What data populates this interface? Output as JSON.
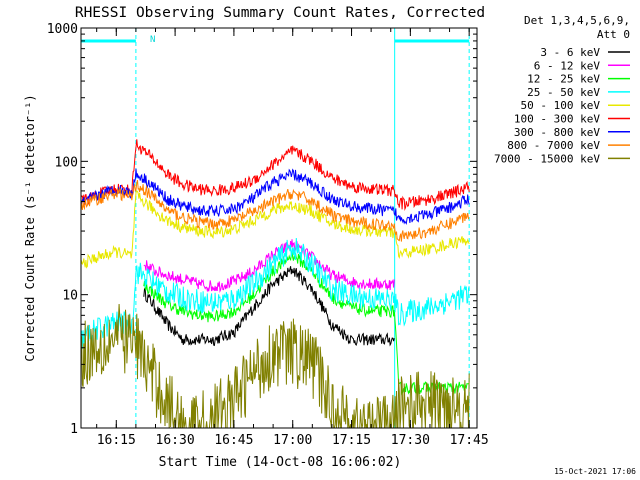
{
  "chart_data": {
    "type": "line",
    "title": "RHESSI Observing Summary Count Rates, Corrected",
    "xlabel": "Start Time (14-Oct-08 16:06:02)",
    "ylabel": "Corrected Count Rate (s⁻¹ detector⁻¹)",
    "xlim": [
      "16:06",
      "17:47"
    ],
    "ylim": [
      1,
      1000
    ],
    "yscale": "log",
    "x_ticks": [
      "16:15",
      "16:30",
      "16:45",
      "17:00",
      "17:15",
      "17:30",
      "17:45"
    ],
    "y_ticks": [
      "1",
      "10",
      "100",
      "1000"
    ],
    "legend_header": [
      "Det 1,3,4,5,6,9,",
      "Att 0"
    ],
    "legend_position": "right",
    "footer_date": "15-Oct-2021 17:06",
    "marker_label": "N",
    "night_intervals": [
      [
        "16:06",
        "16:20"
      ],
      [
        "17:26",
        "17:45"
      ]
    ],
    "time_knots": [
      "16:06",
      "16:10",
      "16:15",
      "16:19",
      "16:20",
      "16:22",
      "16:25",
      "16:28",
      "16:32",
      "16:36",
      "16:40",
      "16:45",
      "16:50",
      "16:55",
      "17:00",
      "17:05",
      "17:10",
      "17:15",
      "17:20",
      "17:26",
      "17:27",
      "17:30",
      "17:35",
      "17:40",
      "17:45"
    ],
    "series": [
      {
        "name": "3 - 6 keV",
        "color": "#000000",
        "values": [
          null,
          null,
          null,
          null,
          null,
          10.5,
          8,
          6,
          4.6,
          4.6,
          4.6,
          5.2,
          8,
          12,
          15.5,
          11,
          6,
          4.6,
          4.6,
          4.6,
          null,
          null,
          null,
          null,
          null
        ]
      },
      {
        "name": "6 - 12 keV",
        "color": "#ff00ff",
        "values": [
          null,
          null,
          null,
          null,
          null,
          17,
          15,
          14,
          13,
          12,
          11.5,
          12.5,
          15,
          20,
          24,
          19,
          14,
          12.5,
          12,
          12,
          null,
          null,
          null,
          null,
          null
        ]
      },
      {
        "name": "12 - 25 keV",
        "color": "#00ff00",
        "values": [
          null,
          null,
          null,
          null,
          null,
          12,
          10,
          8.5,
          7.5,
          7,
          6.8,
          7.5,
          10,
          15,
          20,
          15,
          9.5,
          8,
          7.5,
          7.5,
          2,
          2,
          2,
          2,
          2
        ]
      },
      {
        "name": "25 - 50 keV",
        "color": "#00ffff",
        "values": [
          4.6,
          5.5,
          6.2,
          6,
          15,
          14,
          12,
          10.5,
          9.5,
          9,
          8.7,
          9.3,
          12,
          17,
          23,
          17,
          11,
          9.8,
          9.4,
          9,
          7,
          7.5,
          8,
          9,
          10
        ]
      },
      {
        "name": "50 - 100 keV",
        "color": "#e8e800",
        "values": [
          17,
          19,
          21,
          19.5,
          55,
          50,
          42,
          36,
          32,
          30,
          29,
          31,
          36,
          43,
          47,
          42,
          34,
          31,
          30,
          29,
          20,
          21,
          22,
          24,
          26
        ]
      },
      {
        "name": "100 - 300 keV",
        "color": "#ff0000",
        "values": [
          50,
          56,
          63,
          60,
          135,
          120,
          100,
          80,
          67,
          62,
          60,
          63,
          72,
          95,
          120,
          100,
          75,
          65,
          62,
          60,
          48,
          49,
          52,
          57,
          64
        ]
      },
      {
        "name": "300 - 800 keV",
        "color": "#0000ff",
        "values": [
          48,
          55,
          62,
          58,
          80,
          75,
          63,
          52,
          46,
          43,
          42,
          44,
          53,
          70,
          80,
          68,
          52,
          46,
          44,
          42,
          37,
          38,
          40,
          45,
          52
        ]
      },
      {
        "name": "800 - 7000 keV",
        "color": "#ff8000",
        "values": [
          47,
          52,
          58,
          54,
          67,
          62,
          52,
          43,
          38,
          35,
          34,
          36,
          42,
          50,
          58,
          50,
          40,
          35,
          34,
          33,
          27,
          28,
          30,
          34,
          40
        ]
      },
      {
        "name": "7000 - 15000 keV",
        "color": "#808000",
        "values": [
          3.5,
          4.2,
          4.8,
          4.5,
          4.5,
          3.2,
          2.2,
          1.6,
          1,
          1,
          1.2,
          1.6,
          2.6,
          3.7,
          3.7,
          3.1,
          1.5,
          1,
          1,
          1,
          1.5,
          1.5,
          1.5,
          1.5,
          1.5
        ]
      }
    ]
  }
}
